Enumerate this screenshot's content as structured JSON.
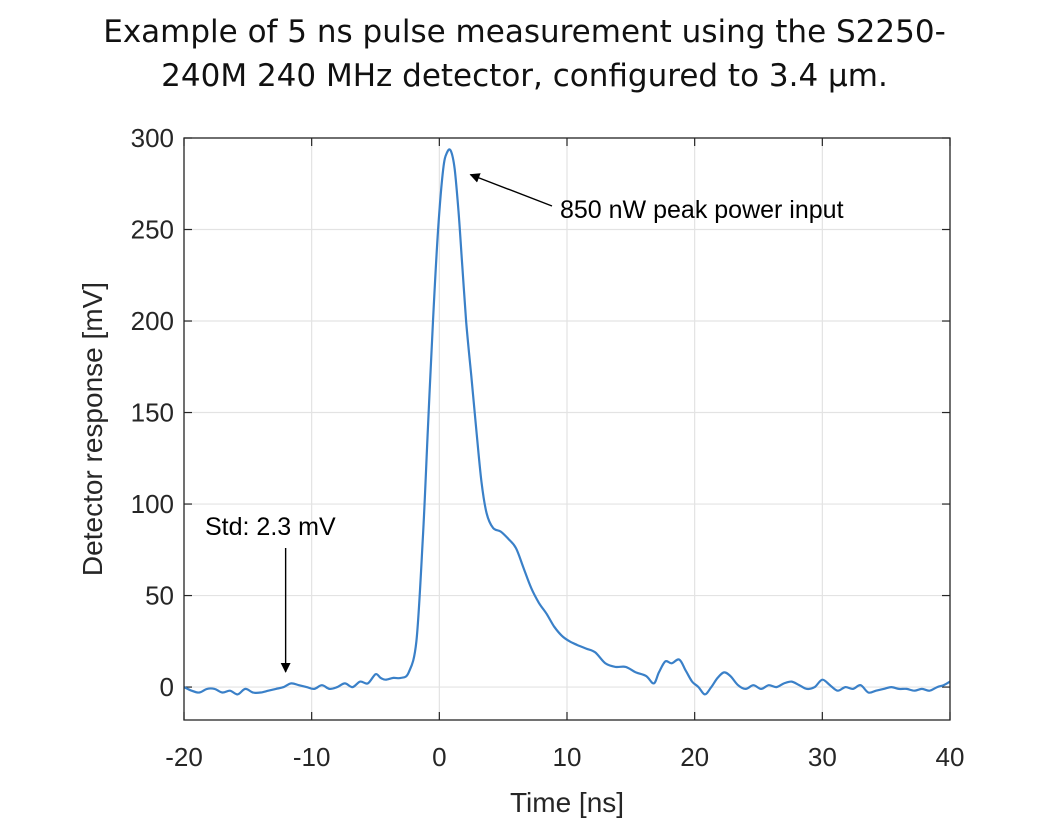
{
  "chart_data": {
    "type": "line",
    "title_lines": [
      "Example of 5 ns pulse measurement using the S2250-",
      "240M 240 MHz detector, configured to 3.4 µm."
    ],
    "xlabel": "Time [ns]",
    "ylabel": "Detector response [mV]",
    "xlim": [
      -20,
      40
    ],
    "ylim": [
      -18,
      300
    ],
    "xticks": [
      -20,
      -10,
      0,
      10,
      20,
      30,
      40
    ],
    "yticks": [
      0,
      50,
      100,
      150,
      200,
      250,
      300
    ],
    "xtick_labels": [
      "-20",
      "-10",
      "0",
      "10",
      "20",
      "30",
      "40"
    ],
    "ytick_labels": [
      "0",
      "50",
      "100",
      "150",
      "200",
      "250",
      "300"
    ],
    "grid": true,
    "line_color": "#3a80c8",
    "series": [
      {
        "x": [
          -20,
          -19.4,
          -18.8,
          -18.2,
          -17.6,
          -17,
          -16.4,
          -15.8,
          -15.2,
          -14.6,
          -14,
          -13.4,
          -12.8,
          -12.2,
          -11.6,
          -11,
          -10.4,
          -9.8,
          -9.2,
          -8.6,
          -8,
          -7.4,
          -6.8,
          -6.2,
          -5.6,
          -5,
          -4.6,
          -4.2,
          -3.6,
          -3,
          -2.4,
          -1.8,
          -1.3,
          -0.9,
          -0.5,
          -0.1,
          0.3,
          0.6,
          0.9,
          1.2,
          1.5,
          1.8,
          2.1,
          2.5,
          2.9,
          3.3,
          3.7,
          4.2,
          4.8,
          5.4,
          6,
          6.6,
          7.2,
          7.8,
          8.4,
          9,
          9.6,
          10.2,
          10.8,
          11.5,
          12.2,
          13,
          13.8,
          14.6,
          15.4,
          16.2,
          16.8,
          17.2,
          17.7,
          18.2,
          18.8,
          19.3,
          19.8,
          20.3,
          20.8,
          21.3,
          21.8,
          22.3,
          22.8,
          23.4,
          24,
          24.6,
          25.2,
          25.8,
          26.4,
          27,
          27.6,
          28.2,
          28.8,
          29.4,
          30,
          30.6,
          31.2,
          31.8,
          32.4,
          33,
          33.6,
          34.2,
          34.8,
          35.4,
          36,
          36.6,
          37.2,
          37.8,
          38.4,
          39,
          39.5,
          40
        ],
        "y": [
          0,
          -2,
          -3,
          -1,
          -1,
          -3,
          -2,
          -4,
          -1,
          -3,
          -3,
          -2,
          -1,
          0,
          2,
          1,
          0,
          -1,
          1,
          -1,
          0,
          2,
          0,
          3,
          2,
          7,
          5,
          4,
          5,
          5,
          8,
          25,
          80,
          140,
          200,
          250,
          283,
          292,
          293,
          283,
          260,
          230,
          200,
          170,
          140,
          112,
          95,
          87,
          85,
          81,
          76,
          65,
          54,
          46,
          40,
          33,
          28,
          25,
          23,
          21,
          19,
          13,
          11,
          11,
          8,
          6,
          2,
          8,
          14,
          13,
          15,
          9,
          3,
          0,
          -4,
          0,
          5,
          8,
          6,
          1,
          -1,
          1,
          -1,
          1,
          0,
          2,
          3,
          1,
          -1,
          0,
          4,
          1,
          -2,
          0,
          -1,
          1,
          -3,
          -2,
          -1,
          0,
          -1,
          -1,
          -2,
          -1,
          -2,
          0,
          1,
          3
        ]
      }
    ],
    "annotations": [
      {
        "text": "850 nW peak power input",
        "tip_x": 1.5,
        "tip_y": 280
      },
      {
        "text": "Std: 2.3 mV",
        "tip_x": -12,
        "tip_y": 5
      }
    ]
  }
}
